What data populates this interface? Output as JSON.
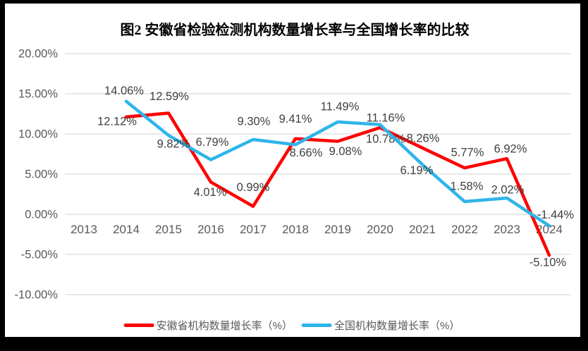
{
  "title": {
    "text": "图2 安徽省检验检测机构数量增长率与全国增长率的比较"
  },
  "style": {
    "grid_color": "#D9D9D9",
    "axis_text_color": "#595959",
    "label_text_color": "#404040",
    "background": "#FFFFFF",
    "frame_color": "#000000"
  },
  "chart_data": {
    "type": "line",
    "title": "图2 安徽省检验检测机构数量增长率与全国增长率的比较",
    "xlabel": "",
    "ylabel": "",
    "grid": true,
    "legend_position": "bottom",
    "ylim": [
      -10,
      20
    ],
    "ytick_step": 5,
    "x": [
      "2013",
      "2014",
      "2015",
      "2016",
      "2017",
      "2018",
      "2019",
      "2020",
      "2021",
      "2022",
      "2023",
      "2024"
    ],
    "yticks": [
      {
        "value": 20,
        "label": "20.00%"
      },
      {
        "value": 15,
        "label": "15.00%"
      },
      {
        "value": 10,
        "label": "10.00%"
      },
      {
        "value": 5,
        "label": "5.00%"
      },
      {
        "value": 0,
        "label": "0.00%"
      },
      {
        "value": -5,
        "label": "-5.00%"
      },
      {
        "value": -10,
        "label": "-10.00%"
      }
    ],
    "series": [
      {
        "name": "安徽省机构数量增长率（%）",
        "color": "#FF0000",
        "values": [
          null,
          12.12,
          12.59,
          4.01,
          0.99,
          9.41,
          9.08,
          10.78,
          8.26,
          5.77,
          6.92,
          -5.1
        ],
        "labels": [
          "",
          "12.12%",
          "12.59%",
          "4.01%",
          "0.99%",
          "9.41%",
          "9.08%",
          "10.78%",
          "8.26%",
          "5.77%",
          "6.92%",
          "-5.10%"
        ],
        "label_offsets": [
          [
            0,
            0
          ],
          [
            -13,
            6
          ],
          [
            1,
            -24
          ],
          [
            -1,
            14
          ],
          [
            0,
            -27
          ],
          [
            0,
            -28
          ],
          [
            11,
            14
          ],
          [
            8,
            16
          ],
          [
            1,
            -14
          ],
          [
            4,
            -22
          ],
          [
            5,
            -14
          ],
          [
            -2,
            10
          ]
        ]
      },
      {
        "name": "全国机构数量增长率（%）",
        "color": "#2EB5EA",
        "values": [
          null,
          14.06,
          9.82,
          6.79,
          9.3,
          8.66,
          11.49,
          11.16,
          6.19,
          1.58,
          2.02,
          -1.44
        ],
        "labels": [
          "",
          "14.06%",
          "9.82%",
          "6.79%",
          "9.30%",
          "8.66%",
          "11.49%",
          "11.16%",
          "6.19%",
          "1.58%",
          "2.02%",
          "-1.44%"
        ],
        "label_offsets": [
          [
            0,
            0
          ],
          [
            -3,
            -15
          ],
          [
            7,
            12
          ],
          [
            2,
            -25
          ],
          [
            1,
            -26
          ],
          [
            15,
            11
          ],
          [
            3,
            -22
          ],
          [
            8,
            -10
          ],
          [
            -8,
            8
          ],
          [
            3,
            -22
          ],
          [
            1,
            -12
          ],
          [
            9,
            -16
          ]
        ]
      }
    ]
  }
}
